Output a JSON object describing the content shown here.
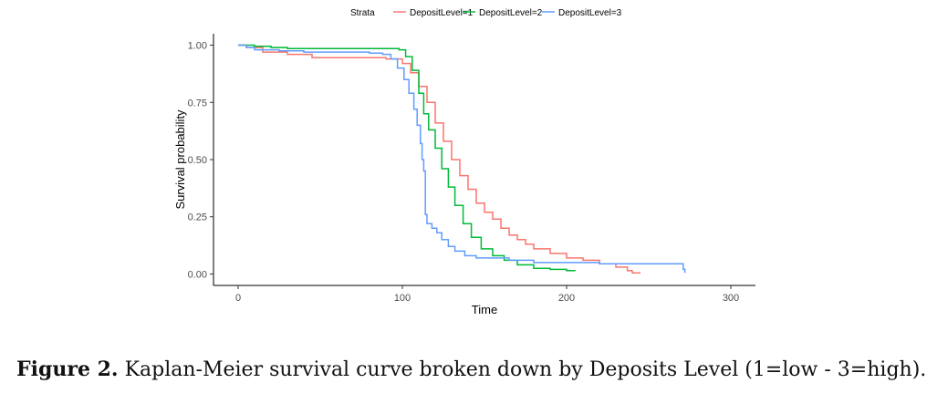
{
  "chart_data": {
    "type": "line",
    "xlabel": "Time",
    "ylabel": "Survival probability",
    "xlim": [
      -15,
      315
    ],
    "ylim": [
      -0.05,
      1.05
    ],
    "x_ticks": [
      0,
      100,
      200,
      300
    ],
    "y_ticks": [
      0.0,
      0.25,
      0.5,
      0.75,
      1.0
    ],
    "y_tick_labels": [
      "0.00",
      "0.25",
      "0.50",
      "0.75",
      "1.00"
    ],
    "grid": false,
    "legend": {
      "title": "Strata",
      "placement": "top"
    },
    "series": [
      {
        "name": "DepositLevel=1",
        "color": "#F8766D",
        "points": [
          [
            0,
            1.0
          ],
          [
            5,
            0.99
          ],
          [
            15,
            0.97
          ],
          [
            30,
            0.96
          ],
          [
            45,
            0.945
          ],
          [
            60,
            0.945
          ],
          [
            80,
            0.945
          ],
          [
            90,
            0.94
          ],
          [
            100,
            0.92
          ],
          [
            105,
            0.88
          ],
          [
            110,
            0.82
          ],
          [
            115,
            0.75
          ],
          [
            120,
            0.66
          ],
          [
            125,
            0.58
          ],
          [
            130,
            0.5
          ],
          [
            135,
            0.43
          ],
          [
            140,
            0.37
          ],
          [
            145,
            0.31
          ],
          [
            150,
            0.27
          ],
          [
            155,
            0.24
          ],
          [
            160,
            0.2
          ],
          [
            165,
            0.17
          ],
          [
            170,
            0.15
          ],
          [
            175,
            0.13
          ],
          [
            180,
            0.11
          ],
          [
            190,
            0.09
          ],
          [
            200,
            0.07
          ],
          [
            210,
            0.06
          ],
          [
            220,
            0.045
          ],
          [
            230,
            0.03
          ],
          [
            237,
            0.015
          ],
          [
            240,
            0.005
          ],
          [
            245,
            0.005
          ]
        ]
      },
      {
        "name": "DepositLevel=2",
        "color": "#00BA38",
        "points": [
          [
            0,
            1.0
          ],
          [
            10,
            0.995
          ],
          [
            20,
            0.99
          ],
          [
            30,
            0.985
          ],
          [
            60,
            0.985
          ],
          [
            90,
            0.985
          ],
          [
            98,
            0.98
          ],
          [
            102,
            0.95
          ],
          [
            106,
            0.89
          ],
          [
            110,
            0.79
          ],
          [
            113,
            0.7
          ],
          [
            116,
            0.63
          ],
          [
            120,
            0.55
          ],
          [
            124,
            0.46
          ],
          [
            128,
            0.38
          ],
          [
            132,
            0.3
          ],
          [
            137,
            0.22
          ],
          [
            142,
            0.16
          ],
          [
            148,
            0.11
          ],
          [
            155,
            0.08
          ],
          [
            162,
            0.06
          ],
          [
            170,
            0.04
          ],
          [
            180,
            0.025
          ],
          [
            190,
            0.02
          ],
          [
            200,
            0.015
          ],
          [
            205,
            0.012
          ]
        ]
      },
      {
        "name": "DepositLevel=3",
        "color": "#619CFF",
        "points": [
          [
            0,
            1.0
          ],
          [
            5,
            0.99
          ],
          [
            10,
            0.98
          ],
          [
            25,
            0.975
          ],
          [
            40,
            0.97
          ],
          [
            60,
            0.97
          ],
          [
            80,
            0.965
          ],
          [
            88,
            0.96
          ],
          [
            93,
            0.94
          ],
          [
            97,
            0.9
          ],
          [
            101,
            0.85
          ],
          [
            104,
            0.79
          ],
          [
            107,
            0.72
          ],
          [
            109,
            0.65
          ],
          [
            111,
            0.57
          ],
          [
            112,
            0.5
          ],
          [
            113,
            0.45
          ],
          [
            114,
            0.35
          ],
          [
            114,
            0.26
          ],
          [
            115,
            0.22
          ],
          [
            118,
            0.2
          ],
          [
            121,
            0.18
          ],
          [
            124,
            0.15
          ],
          [
            128,
            0.12
          ],
          [
            132,
            0.1
          ],
          [
            138,
            0.08
          ],
          [
            145,
            0.07
          ],
          [
            155,
            0.07
          ],
          [
            165,
            0.06
          ],
          [
            180,
            0.05
          ],
          [
            195,
            0.05
          ],
          [
            205,
            0.05
          ],
          [
            220,
            0.045
          ],
          [
            240,
            0.045
          ],
          [
            255,
            0.045
          ],
          [
            265,
            0.045
          ],
          [
            270,
            0.045
          ],
          [
            271,
            0.02
          ],
          [
            272,
            0.005
          ]
        ]
      }
    ]
  },
  "caption": {
    "label": "Figure 2.",
    "text": " Kaplan-Meier survival curve broken down by Deposits Level (1=low - 3=high)."
  }
}
